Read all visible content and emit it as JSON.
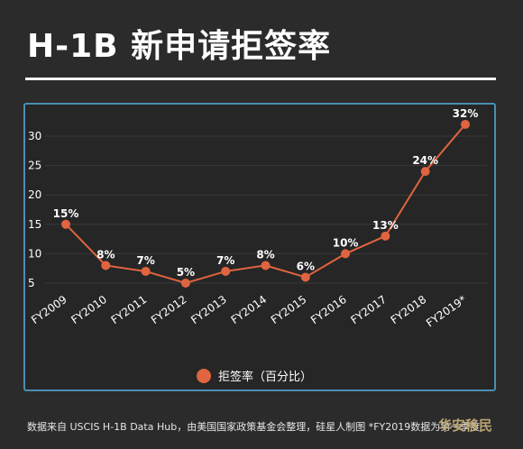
{
  "page": {
    "title": "H-1B 新申请拒签率",
    "footer": "数据来自 USCIS H-1B Data Hub，由美国国家政策基金会整理，硅星人制图 *FY2019数据为第一季度",
    "watermark": "华安移民"
  },
  "colors": {
    "background": "#2b2b2b",
    "frame": "#4a8fb3",
    "line": "#e0643f",
    "text": "#ffffff"
  },
  "chart_data": {
    "type": "line",
    "title": "H-1B 新申请拒签率",
    "categories": [
      "FY2009",
      "FY2010",
      "FY2011",
      "FY2012",
      "FY2013",
      "FY2014",
      "FY2015",
      "FY2016",
      "FY2017",
      "FY2018",
      "FY2019*"
    ],
    "series": [
      {
        "name": "拒签率（百分比）",
        "values": [
          15,
          8,
          7,
          5,
          7,
          8,
          6,
          10,
          13,
          24,
          32
        ],
        "labels": [
          "15%",
          "8%",
          "7%",
          "5%",
          "7%",
          "8%",
          "6%",
          "10%",
          "13%",
          "24%",
          "32%"
        ]
      }
    ],
    "yticks": [
      5,
      10,
      15,
      20,
      25,
      30
    ],
    "ylim": [
      0,
      34
    ],
    "grid": true,
    "legend_position": "bottom"
  }
}
